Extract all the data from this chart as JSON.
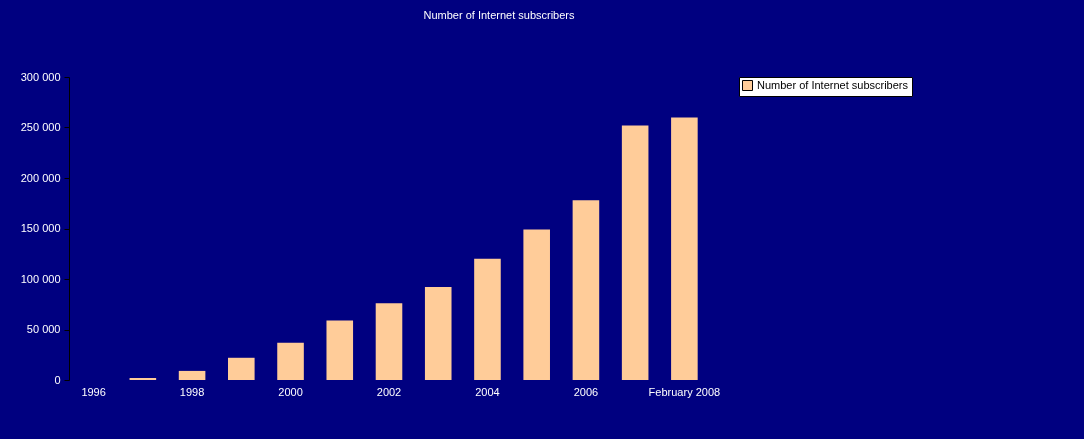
{
  "chart_data": {
    "type": "bar",
    "title": "Number of Internet subscribers",
    "categories": [
      "1996",
      null,
      "1998",
      null,
      "2000",
      null,
      "2002",
      null,
      "2004",
      null,
      "2006",
      null,
      "February 2008"
    ],
    "series": [
      {
        "name": "Number of Internet subscribers",
        "color": "#ffcc99",
        "values": [
          0,
          2000,
          9000,
          22000,
          37000,
          59000,
          76000,
          92000,
          120000,
          149000,
          178000,
          252000,
          260000
        ]
      }
    ],
    "ylim": [
      0,
      300000
    ],
    "yticks": [
      {
        "value": 0,
        "label": "0"
      },
      {
        "value": 50000,
        "label": "50 000"
      },
      {
        "value": 100000,
        "label": "100 000"
      },
      {
        "value": 150000,
        "label": "150 000"
      },
      {
        "value": 200000,
        "label": "200 000"
      },
      {
        "value": 250000,
        "label": "250 000"
      },
      {
        "value": 300000,
        "label": "300 000"
      }
    ],
    "grid": false,
    "legend": "right"
  }
}
